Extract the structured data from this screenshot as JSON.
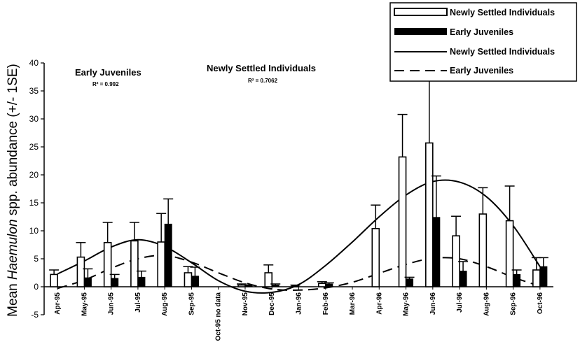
{
  "chart_data": {
    "type": "bar",
    "title": "",
    "ylabel_prefix": "Mean ",
    "ylabel_italic": "Haemulon",
    "ylabel_suffix": " spp. abundance (+/- 1SE)",
    "xlabel": "",
    "ylim": [
      -5,
      40
    ],
    "yticks": [
      -5,
      0,
      5,
      10,
      15,
      20,
      25,
      30,
      35,
      40
    ],
    "categories": [
      "Apr-95",
      "May-95",
      "Jun-95",
      "Jul-95",
      "Aug-95",
      "Sep-95",
      "Oct-95 no data",
      "Nov-95",
      "Dec-95",
      "Jan-96",
      "Feb-96",
      "Mar-96",
      "Apr-96",
      "May-96",
      "Jun-96",
      "Jul-96",
      "Aug-96",
      "Sep-96",
      "Oct-96"
    ],
    "series": [
      {
        "name": "Newly Settled Individuals",
        "kind": "bar",
        "fill": "#ffffff",
        "values": [
          2.2,
          5.3,
          7.9,
          8.2,
          8.0,
          2.5,
          null,
          0.3,
          2.5,
          0.2,
          0.6,
          0.0,
          10.4,
          23.2,
          25.7,
          9.1,
          13.0,
          11.8,
          3.0
        ],
        "errors": [
          0.8,
          2.6,
          3.6,
          3.3,
          5.1,
          1.1,
          null,
          0.2,
          1.4,
          0.1,
          0.3,
          0.0,
          4.2,
          7.6,
          11.3,
          3.5,
          4.7,
          6.2,
          2.2
        ]
      },
      {
        "name": "Early Juveniles",
        "kind": "bar",
        "fill": "#000000",
        "values": [
          0.0,
          1.6,
          1.5,
          1.7,
          11.2,
          1.9,
          null,
          0.2,
          0.3,
          0.0,
          0.5,
          0.0,
          0.0,
          1.4,
          12.4,
          2.8,
          0.0,
          2.2,
          3.6
        ],
        "errors": [
          0.0,
          1.6,
          0.7,
          1.1,
          4.5,
          1.6,
          null,
          0.1,
          0.2,
          0.0,
          0.2,
          0.0,
          0.0,
          0.3,
          7.4,
          1.7,
          0.0,
          0.8,
          1.6
        ]
      },
      {
        "name": "Newly Settled Individuals",
        "kind": "trend",
        "style": "solid",
        "values": [
          2.3,
          4.6,
          7.1,
          8.4,
          7.2,
          4.3,
          1.1,
          -0.8,
          -1.0,
          0.4,
          3.8,
          8.0,
          12.5,
          16.4,
          18.8,
          18.7,
          16.1,
          10.9,
          3.6
        ]
      },
      {
        "name": "Early Juveniles",
        "kind": "trend",
        "style": "dashed",
        "values": [
          -0.3,
          1.2,
          3.3,
          5.0,
          5.6,
          4.4,
          2.5,
          0.7,
          -0.4,
          -0.6,
          -0.2,
          0.8,
          2.4,
          4.0,
          5.1,
          5.0,
          3.6,
          1.7,
          0.1
        ]
      }
    ],
    "annotations": [
      {
        "text": "Early Juveniles",
        "r2": "R² = 0.992"
      },
      {
        "text": "Newly Settled Individuals",
        "r2": "R² = 0.7062"
      }
    ],
    "legend_position": "top-right",
    "grid": false
  }
}
